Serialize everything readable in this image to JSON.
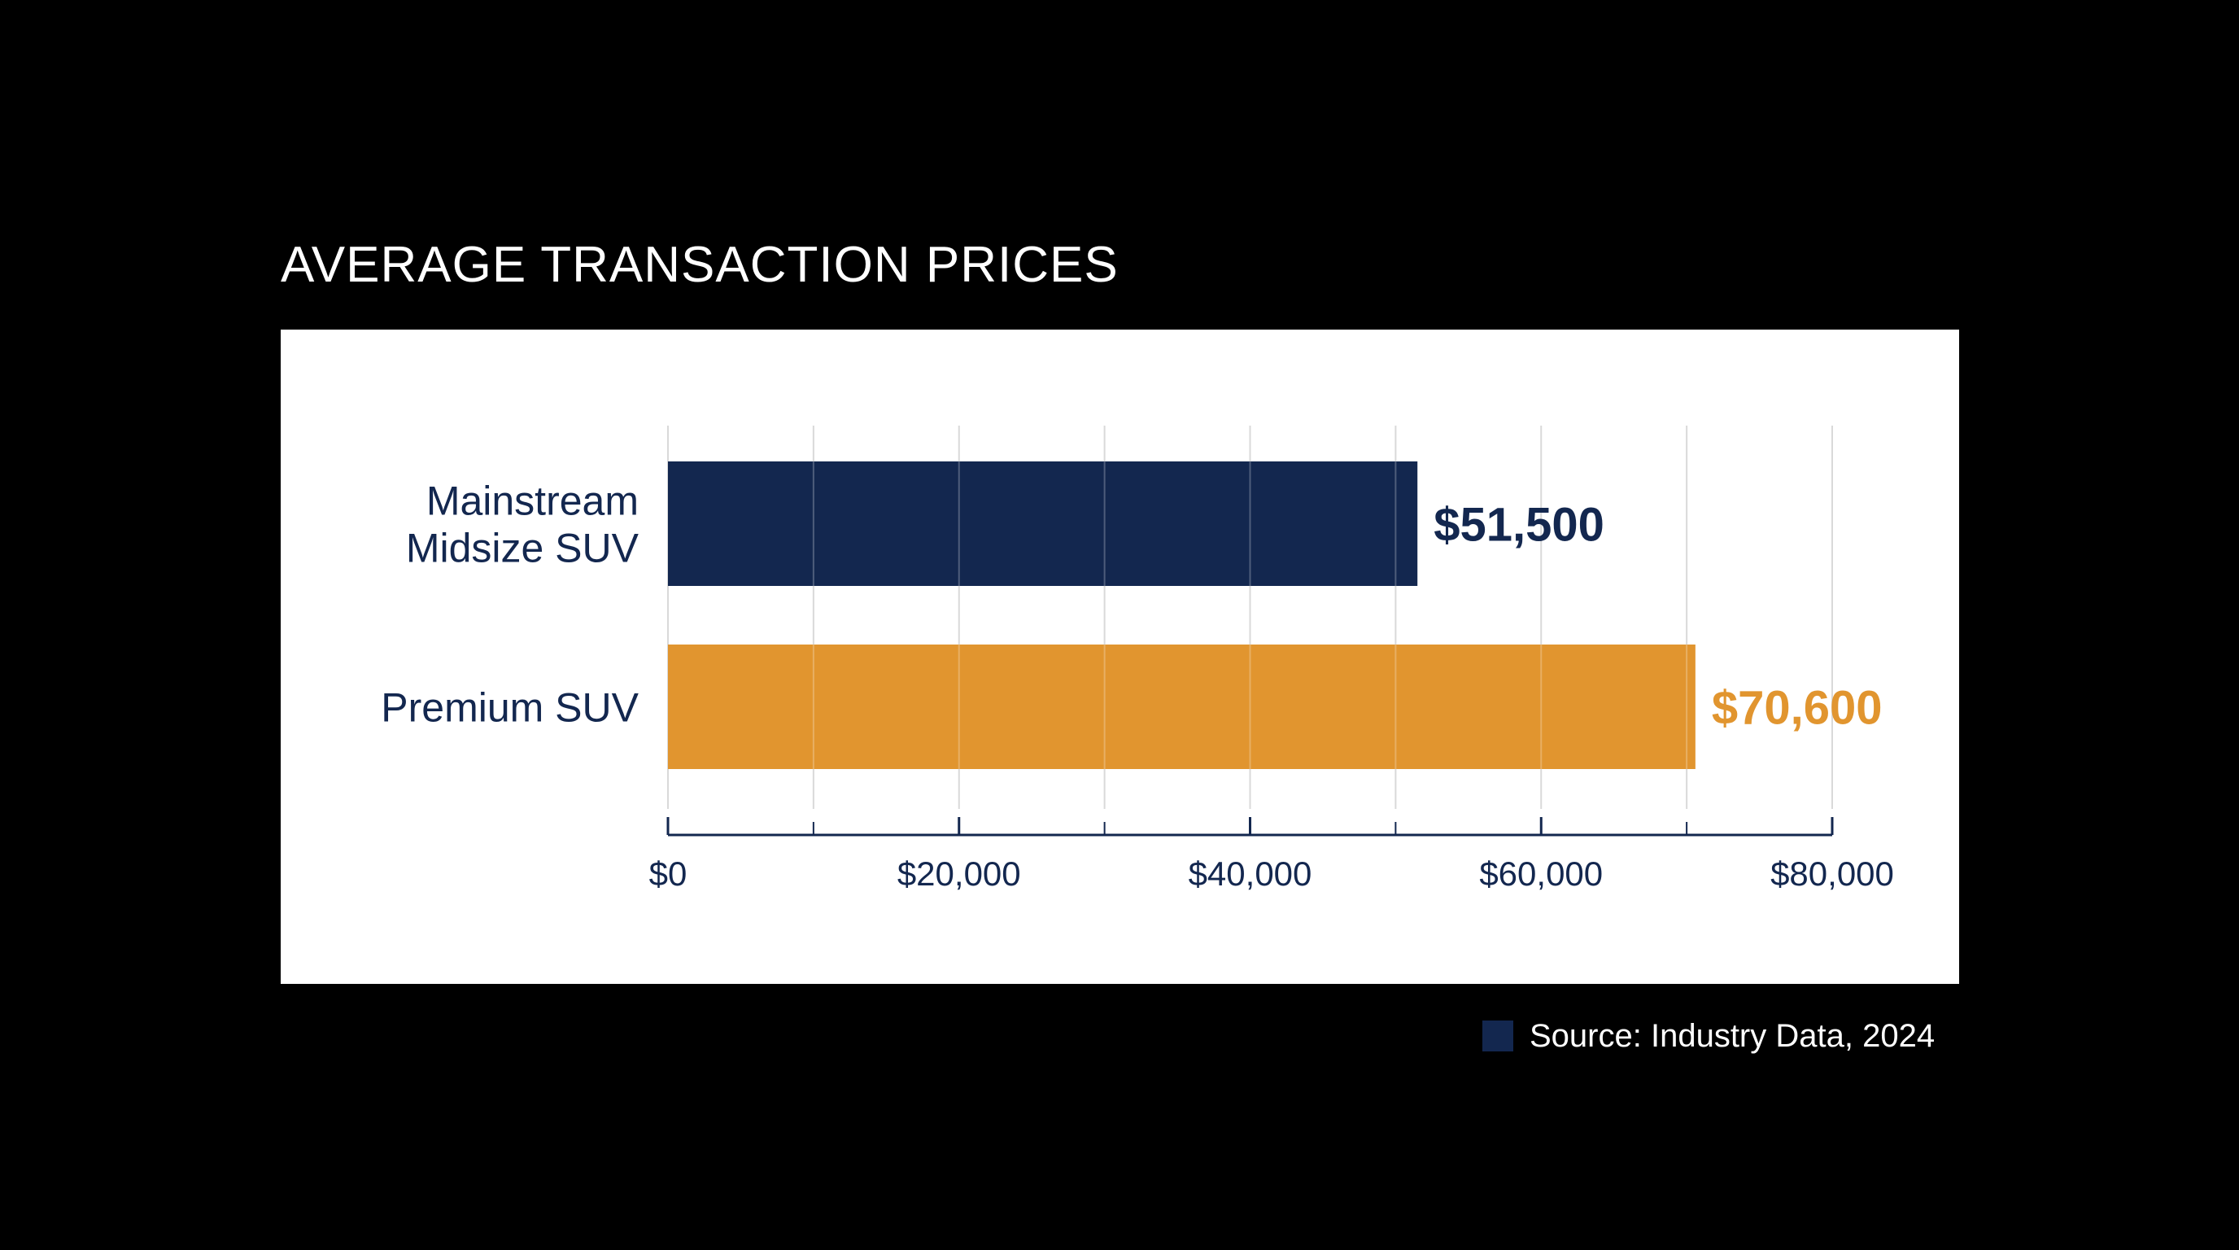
{
  "chart_data": {
    "type": "bar",
    "orientation": "horizontal",
    "title": "AVERAGE TRANSACTION PRICES",
    "categories": [
      [
        "Mainstream",
        "Midsize SUV"
      ],
      [
        "Premium SUV"
      ]
    ],
    "values": [
      51500,
      70600
    ],
    "value_labels": [
      "$51,500",
      "$70,600"
    ],
    "bar_colors": [
      "#13274f",
      "#e1952f"
    ],
    "xlim": [
      0,
      80000
    ],
    "x_ticks": [
      0,
      20000,
      40000,
      60000,
      80000
    ],
    "x_tick_labels": [
      "$0",
      "$20,000",
      "$40,000",
      "$60,000",
      "$80,000"
    ],
    "minor_tick_step": 10000,
    "grid": true,
    "xlabel": "",
    "ylabel": ""
  },
  "source": {
    "text": "Source: Industry Data, 2024",
    "swatch_color": "#13274f"
  },
  "colors": {
    "axis_text": "#13274f",
    "grid": "#d9d9d9"
  }
}
